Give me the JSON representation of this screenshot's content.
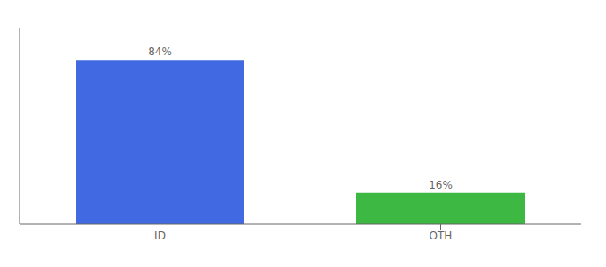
{
  "chart_data": {
    "type": "bar",
    "categories": [
      "ID",
      "OTH"
    ],
    "values": [
      84,
      16
    ],
    "value_labels": [
      "84%",
      "16%"
    ],
    "colors": [
      "#4169e1",
      "#3cb843"
    ],
    "ylim": [
      0,
      100
    ],
    "data_labels": true,
    "tick_labels": "x",
    "grid": false
  }
}
